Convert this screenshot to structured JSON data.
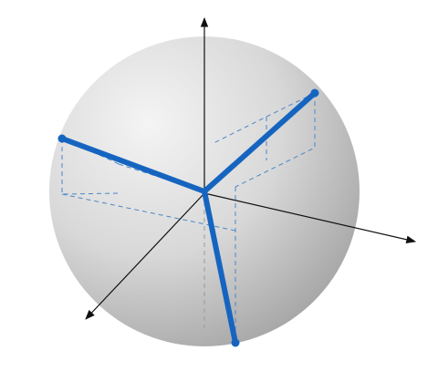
{
  "diagram": {
    "kind": "sphere-with-coordinate-axes-and-vectors",
    "colors": {
      "sphere_highlight": "#f4f4f4",
      "sphere_mid": "#d8d8d8",
      "sphere_shadow": "#a8a8a8",
      "axis": "#111111",
      "vector": "#1565c0",
      "guide_dashed": "#4a86c8",
      "guide_hidden": "#9a9a9a",
      "background": "#ffffff"
    },
    "axes": [
      {
        "id": "axis-vertical",
        "direction": "up"
      },
      {
        "id": "axis-right",
        "direction": "right-down"
      },
      {
        "id": "axis-front",
        "direction": "left-down"
      }
    ],
    "vectors": [
      {
        "id": "vector-upper-right",
        "direction": "upper-right"
      },
      {
        "id": "vector-left",
        "direction": "upper-left"
      },
      {
        "id": "vector-down",
        "direction": "down"
      }
    ]
  }
}
